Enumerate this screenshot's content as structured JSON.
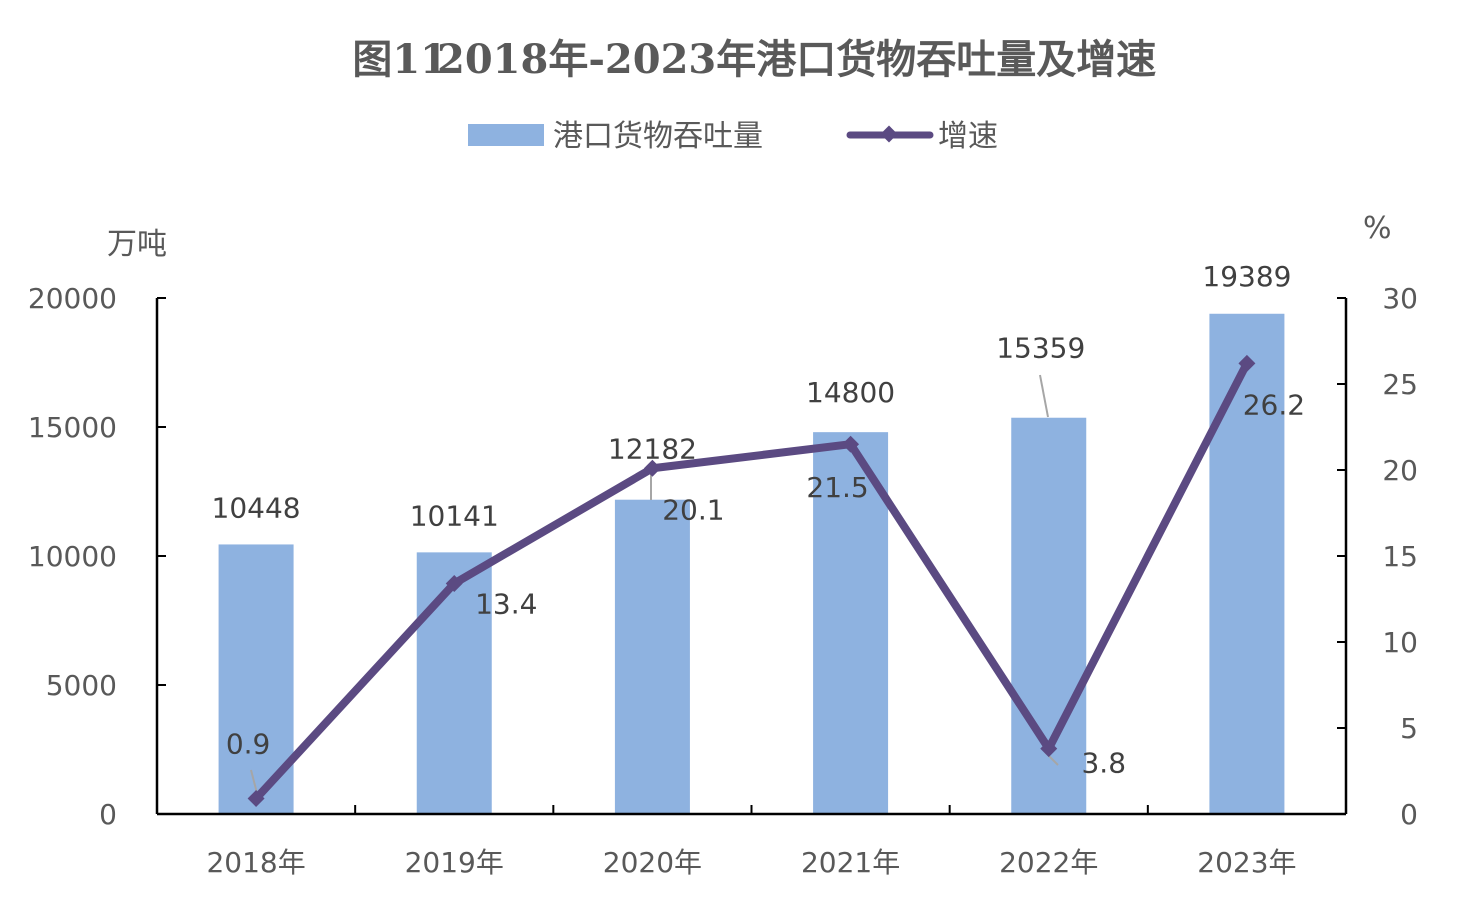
{
  "chart_data": {
    "type": "bar+line",
    "title_figure": "图11",
    "title_text": "2018年-2023年港口货物吞吐量及增速",
    "categories": [
      "2018年",
      "2019年",
      "2020年",
      "2021年",
      "2022年",
      "2023年"
    ],
    "series": [
      {
        "name": "港口货物吞吐量",
        "type": "bar",
        "axis": "left",
        "values": [
          10448,
          10141,
          12182,
          14800,
          15359,
          19389
        ],
        "color": "#8EB2E0"
      },
      {
        "name": "增速",
        "type": "line",
        "axis": "right",
        "values": [
          0.9,
          13.4,
          20.1,
          21.5,
          3.8,
          26.2
        ],
        "color": "#5B4A82"
      }
    ],
    "left_axis": {
      "unit": "万吨",
      "min": 0,
      "max": 20000,
      "ticks": [
        0,
        5000,
        10000,
        15000,
        20000
      ]
    },
    "right_axis": {
      "unit": "%",
      "min": 0,
      "max": 30,
      "ticks": [
        0,
        5,
        10,
        15,
        20,
        25,
        30
      ]
    },
    "bar_labels": [
      "10448",
      "10141",
      "12182",
      "14800",
      "15359",
      "19389"
    ],
    "line_labels": [
      "0.9",
      "13.4",
      "20.1",
      "21.5",
      "3.8",
      "26.2"
    ],
    "legend_position": "top-center"
  }
}
